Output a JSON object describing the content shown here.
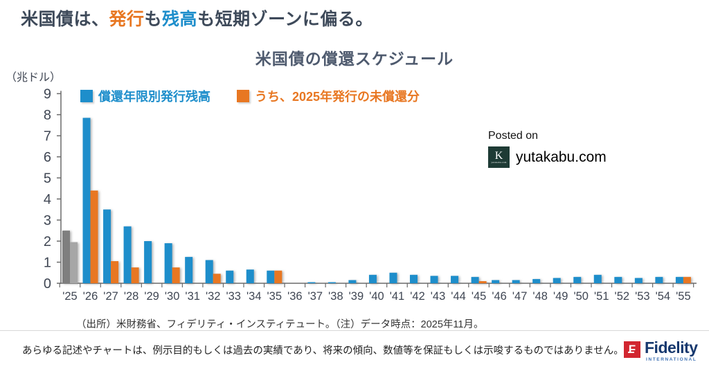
{
  "header": {
    "title_parts": [
      "米国債は、",
      "発行",
      "も",
      "残高",
      "も短期ゾーンに偏る。"
    ],
    "accent_colors": {
      "issuance": "#e87722",
      "balance": "#1e8ecb"
    }
  },
  "watermark": {
    "posted_on": "Posted on",
    "site": "yutakabu.com",
    "logo_monogram": "K",
    "logo_sub": "yutakabu.com",
    "logo_bg": "#1e3b35"
  },
  "footer": {
    "source_note": "（出所）米財務省、フィデリティ・インスティテュート。（注）データ時点：2025年11月。",
    "disclaimer": "あらゆる記述やチャートは、例示目的もしくは過去の実績であり、将来の傾向、数値等を保証もしくは示唆するものではありません。",
    "brand_name": "Fidelity",
    "brand_sub": "INTERNATIONAL",
    "brand_colors": {
      "square": "#d22630",
      "word": "#16386e",
      "sub": "#3f72b4"
    }
  },
  "chart_data": {
    "type": "bar",
    "title": "米国債の償還スケジュール",
    "ylabel": "（兆ドル）",
    "xlabel": "",
    "ylim": [
      0,
      9
    ],
    "ytick_step": 1,
    "grid": false,
    "legend_position": "top-left",
    "categories": [
      "'25",
      "'26",
      "'27",
      "'28",
      "'29",
      "'30",
      "'31",
      "'32",
      "'33",
      "'34",
      "'35",
      "'36",
      "'37",
      "'38",
      "'39",
      "'40",
      "'41",
      "'42",
      "'43",
      "'44",
      "'45",
      "'46",
      "'47",
      "'48",
      "'49",
      "'50",
      "'51",
      "'52",
      "'53",
      "'54",
      "'55"
    ],
    "series": [
      {
        "name": "償還年限別発行残高",
        "color": "#1e8ecb",
        "values": [
          2.5,
          7.85,
          3.5,
          2.7,
          2.0,
          1.9,
          1.25,
          1.1,
          0.6,
          0.65,
          0.6,
          0,
          0.05,
          0.05,
          0.15,
          0.4,
          0.5,
          0.4,
          0.35,
          0.35,
          0.3,
          0.15,
          0.15,
          0.2,
          0.25,
          0.3,
          0.4,
          0.3,
          0.25,
          0.3,
          0.3
        ]
      },
      {
        "name": "うち、2025年発行の未償還分",
        "color": "#e87722",
        "values": [
          1.95,
          4.4,
          1.05,
          0.75,
          0,
          0.75,
          0,
          0.45,
          0,
          0,
          0.6,
          0,
          0,
          0,
          0,
          0,
          0,
          0,
          0,
          0,
          0.1,
          0,
          0,
          0,
          0,
          0,
          0,
          0,
          0,
          0,
          0.3
        ]
      }
    ],
    "category_color_overrides": {
      "0": [
        "#7f7f7f",
        "#a6a6a6"
      ]
    },
    "axis_color": "#6a6a6a",
    "tick_label_color": "#3f4653"
  }
}
